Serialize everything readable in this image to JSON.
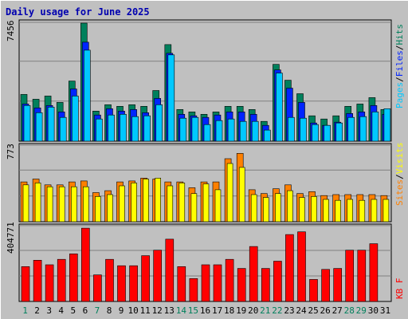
{
  "title": "Daily usage for June 2025",
  "colors": {
    "hits": "#00805c",
    "files": "#0024ff",
    "pages": "#00c8ff",
    "visits": "#ffff00",
    "sites": "#ff8000",
    "kbf": "#ff0000",
    "background": "#c0c0c0",
    "plot_bg": "#c0c0c0",
    "title": "#0000b0"
  },
  "chart_data": [
    {
      "type": "bar",
      "panel": "hits-files-pages",
      "ymax_label": "7456",
      "ylim": [
        0,
        7456
      ],
      "legend": [
        "Pages",
        "/",
        "Files",
        "/",
        "Hits"
      ],
      "categories": [
        "1",
        "2",
        "3",
        "4",
        "5",
        "6",
        "7",
        "8",
        "9",
        "10",
        "11",
        "12",
        "13",
        "14",
        "15",
        "16",
        "17",
        "18",
        "19",
        "20",
        "21",
        "22",
        "23",
        "24",
        "25",
        "26",
        "27",
        "28",
        "29",
        "30",
        "31"
      ],
      "series": [
        {
          "name": "Hits",
          "values": [
            2950,
            2650,
            2850,
            2450,
            3800,
            7456,
            1900,
            2300,
            2200,
            2300,
            2200,
            3200,
            6100,
            2000,
            1850,
            1700,
            1850,
            2200,
            2200,
            2000,
            1250,
            4850,
            3850,
            3000,
            1600,
            1400,
            1600,
            2200,
            2350,
            2750,
            2000
          ]
        },
        {
          "name": "Files",
          "values": [
            2350,
            2100,
            2250,
            1850,
            3300,
            6250,
            1650,
            2050,
            1900,
            2000,
            1800,
            2700,
            5550,
            1700,
            1600,
            1500,
            1650,
            1850,
            1850,
            1700,
            1000,
            4500,
            3350,
            2450,
            1150,
            1000,
            1200,
            1750,
            1850,
            2250,
            1700
          ]
        },
        {
          "name": "Pages",
          "values": [
            2250,
            1800,
            2150,
            1500,
            2850,
            5750,
            1400,
            1650,
            1700,
            1550,
            1600,
            2300,
            5450,
            1450,
            1500,
            1050,
            1300,
            1400,
            1250,
            1250,
            700,
            4300,
            1500,
            1450,
            1050,
            1000,
            1150,
            1500,
            1550,
            1850,
            2050
          ]
        }
      ]
    },
    {
      "type": "bar",
      "panel": "visits-sites",
      "ymax_label": "773",
      "ylim": [
        0,
        773
      ],
      "legend": [
        "Sites",
        "/",
        "Visits"
      ],
      "series": [
        {
          "name": "Visits",
          "values": [
            380,
            400,
            360,
            360,
            360,
            360,
            260,
            280,
            370,
            400,
            440,
            450,
            370,
            400,
            290,
            390,
            330,
            600,
            560,
            280,
            250,
            290,
            320,
            250,
            260,
            230,
            220,
            230,
            220,
            230,
            230
          ]
        },
        {
          "name": "Sites",
          "values": [
            410,
            440,
            380,
            380,
            410,
            420,
            300,
            320,
            410,
            420,
            450,
            440,
            410,
            410,
            350,
            410,
            410,
            650,
            705,
            330,
            290,
            340,
            380,
            290,
            310,
            270,
            280,
            280,
            280,
            280,
            270
          ]
        }
      ]
    },
    {
      "type": "bar",
      "panel": "kbf",
      "ymax_label": "404771",
      "ylim": [
        0,
        404771
      ],
      "legend": [
        "KB F"
      ],
      "series": [
        {
          "name": "KB F",
          "values": [
            190000,
            225000,
            200000,
            230000,
            260000,
            400000,
            145000,
            230000,
            195000,
            195000,
            250000,
            280000,
            340000,
            190000,
            125000,
            200000,
            200000,
            230000,
            180000,
            300000,
            180000,
            220000,
            365000,
            380000,
            120000,
            175000,
            180000,
            280000,
            280000,
            315000,
            0
          ]
        }
      ]
    }
  ]
}
